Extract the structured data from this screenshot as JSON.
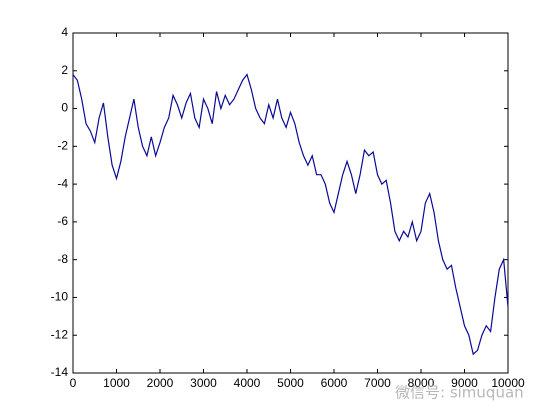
{
  "chart_data": {
    "type": "line",
    "x": [
      0,
      100,
      200,
      300,
      400,
      500,
      600,
      700,
      800,
      900,
      1000,
      1100,
      1200,
      1300,
      1400,
      1500,
      1600,
      1700,
      1800,
      1900,
      2000,
      2100,
      2200,
      2300,
      2400,
      2500,
      2600,
      2700,
      2800,
      2900,
      3000,
      3100,
      3200,
      3300,
      3400,
      3500,
      3600,
      3700,
      3800,
      3900,
      4000,
      4100,
      4200,
      4300,
      4400,
      4500,
      4600,
      4700,
      4800,
      4900,
      5000,
      5100,
      5200,
      5300,
      5400,
      5500,
      5600,
      5700,
      5800,
      5900,
      6000,
      6100,
      6200,
      6300,
      6400,
      6500,
      6600,
      6700,
      6800,
      6900,
      7000,
      7100,
      7200,
      7300,
      7400,
      7500,
      7600,
      7700,
      7800,
      7900,
      8000,
      8100,
      8200,
      8300,
      8400,
      8500,
      8600,
      8700,
      8800,
      8900,
      9000,
      9100,
      9200,
      9300,
      9400,
      9500,
      9600,
      9700,
      9800,
      9900,
      10000
    ],
    "series": [
      {
        "color": "#0a0a96",
        "values": [
          1.8,
          1.5,
          0.5,
          -0.8,
          -1.2,
          -1.8,
          -0.5,
          0.3,
          -1.5,
          -3.0,
          -3.7,
          -2.8,
          -1.5,
          -0.5,
          0.5,
          -1.0,
          -2.0,
          -2.5,
          -1.5,
          -2.5,
          -1.8,
          -1.0,
          -0.5,
          0.7,
          0.2,
          -0.5,
          0.3,
          0.8,
          -0.5,
          -1.0,
          0.5,
          0.0,
          -0.8,
          0.9,
          0.0,
          0.7,
          0.2,
          0.5,
          1.0,
          1.5,
          1.8,
          1.0,
          0.0,
          -0.5,
          -0.8,
          0.2,
          -0.5,
          0.5,
          -0.5,
          -1.0,
          -0.2,
          -0.8,
          -1.8,
          -2.5,
          -3.0,
          -2.5,
          -3.5,
          -3.5,
          -4.0,
          -5.0,
          -5.5,
          -4.5,
          -3.5,
          -2.8,
          -3.5,
          -4.5,
          -3.5,
          -2.2,
          -2.5,
          -2.3,
          -3.5,
          -4.0,
          -3.8,
          -5.0,
          -6.5,
          -7.0,
          -6.5,
          -6.8,
          -6.0,
          -7.0,
          -6.5,
          -5.0,
          -4.5,
          -5.5,
          -7.0,
          -8.0,
          -8.5,
          -8.3,
          -9.5,
          -10.5,
          -11.5,
          -12.0,
          -13.0,
          -12.8,
          -12.0,
          -11.5,
          -11.8,
          -10.0,
          -8.5,
          -8.0,
          -10.5
        ]
      }
    ],
    "xlim": [
      0,
      10000
    ],
    "xticks": [
      0,
      1000,
      2000,
      3000,
      4000,
      5000,
      6000,
      7000,
      8000,
      9000,
      10000
    ],
    "ylim": [
      -14,
      4
    ],
    "yticks": [
      -14,
      -12,
      -10,
      -8,
      -6,
      -4,
      -2,
      0,
      2,
      4
    ],
    "watermark": "微信号: simuquan"
  }
}
